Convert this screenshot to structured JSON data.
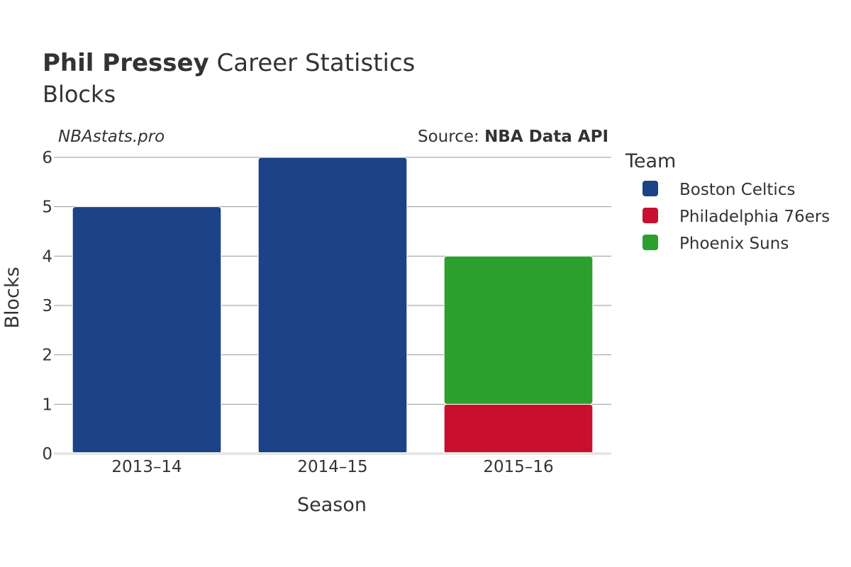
{
  "header": {
    "title_bold": "Phil Pressey",
    "title_rest": " Career Statistics",
    "subtitle": "Blocks"
  },
  "credits": {
    "site": "NBAstats.pro",
    "source_prefix": "Source: ",
    "source_name": "NBA Data API"
  },
  "chart_data": {
    "type": "bar",
    "stacked": true,
    "categories": [
      "2013–14",
      "2014–15",
      "2015–16"
    ],
    "series": [
      {
        "name": "Boston Celtics",
        "color": "#1c4287",
        "values": [
          5,
          6,
          0
        ]
      },
      {
        "name": "Philadelphia 76ers",
        "color": "#c8102e",
        "values": [
          0,
          0,
          1
        ]
      },
      {
        "name": "Phoenix Suns",
        "color": "#2ca02c",
        "values": [
          0,
          0,
          3
        ]
      }
    ],
    "xlabel": "Season",
    "ylabel": "Blocks",
    "ylim": [
      0,
      6
    ],
    "yticks": [
      "0",
      "1",
      "2",
      "3",
      "4",
      "5",
      "6"
    ],
    "grid": true,
    "legend_title": "Team",
    "legend_position": "right"
  }
}
